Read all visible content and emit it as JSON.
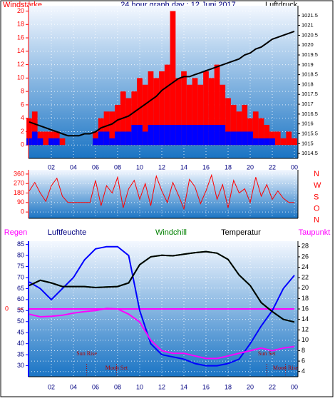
{
  "chart_data": [
    {
      "type": "line",
      "title": "24 hour graph day : 12 Juni 2017",
      "ylabel": "Windstärke",
      "y2label": "Luftdruck",
      "x": [
        0,
        0.5,
        1,
        1.5,
        2,
        2.5,
        3,
        3.5,
        4,
        4.5,
        5,
        5.5,
        6,
        6.5,
        7,
        7.5,
        8,
        8.5,
        9,
        9.5,
        10,
        10.5,
        11,
        11.5,
        12,
        12.5,
        13,
        13.5,
        14,
        14.5,
        15,
        15.5,
        16,
        16.5,
        17,
        17.5,
        18,
        18.5,
        19,
        19.5,
        20,
        20.5,
        21,
        21.5,
        22,
        22.5,
        23,
        23.5,
        24
      ],
      "xlim": [
        0,
        24
      ],
      "xticks": [
        {
          "value": 2,
          "label": "02"
        },
        {
          "value": 4,
          "label": "04"
        },
        {
          "value": 6,
          "label": "06"
        },
        {
          "value": 8,
          "label": "08"
        },
        10,
        12,
        14,
        16,
        18,
        20,
        22,
        {
          "value": 24,
          "label": "00"
        }
      ],
      "ylim": [
        -2,
        20.8
      ],
      "yticks": [
        0,
        2,
        4,
        6,
        8,
        10,
        12,
        14,
        16,
        18,
        20
      ],
      "y2lim": [
        1014.25,
        1022
      ],
      "y2ticks": [
        1014.5,
        1015,
        1015.5,
        1016,
        1016.5,
        1017,
        1017.5,
        1018,
        1018.5,
        1019,
        1019.5,
        1020,
        1020.5,
        1021,
        1021.5
      ],
      "grid": true,
      "series": [
        {
          "type": "bar",
          "color": "#ff0000",
          "values": [
            4,
            5,
            2,
            2,
            2,
            2,
            1,
            0,
            0,
            0,
            0,
            0,
            2,
            4,
            5,
            5,
            6,
            8,
            7,
            8,
            10,
            9,
            11,
            10,
            11,
            12,
            20,
            10,
            11,
            9,
            10,
            9,
            11,
            10,
            12,
            9,
            7,
            6,
            5,
            6,
            4,
            5,
            4,
            3,
            2,
            2,
            1,
            2,
            1
          ]
        },
        {
          "type": "bar",
          "color": "#0000ff",
          "values": [
            1,
            2,
            1,
            0,
            1,
            1,
            0,
            0,
            0,
            0,
            0,
            0,
            1,
            2,
            2,
            1,
            2,
            2,
            2,
            3,
            3,
            2,
            3,
            3,
            3,
            3,
            3,
            3,
            3,
            3,
            3,
            3,
            3,
            3,
            3,
            3,
            2,
            2,
            2,
            2,
            2,
            1,
            1,
            1,
            1,
            0,
            0,
            0,
            0
          ]
        },
        {
          "type": "line",
          "axis": "y2",
          "color": "#000000",
          "values": [
            1016.1,
            1016.0,
            1015.9,
            1015.8,
            1015.7,
            1015.6,
            1015.5,
            1015.4,
            1015.4,
            1015.4,
            1015.5,
            1015.5,
            1015.6,
            1015.8,
            1015.9,
            1016.0,
            1016.2,
            1016.3,
            1016.4,
            1016.6,
            1016.8,
            1017.0,
            1017.2,
            1017.4,
            1017.7,
            1017.9,
            1018.1,
            1018.3,
            1018.4,
            1018.4,
            1018.5,
            1018.6,
            1018.7,
            1018.8,
            1018.9,
            1019.0,
            1019.1,
            1019.2,
            1019.3,
            1019.5,
            1019.6,
            1019.8,
            1019.9,
            1020.1,
            1020.3,
            1020.4,
            1020.5,
            1020.6,
            1020.7
          ]
        }
      ]
    },
    {
      "type": "line",
      "x": [
        0,
        0.5,
        1,
        1.5,
        2,
        2.5,
        3,
        3.5,
        4,
        4.5,
        5,
        5.5,
        6,
        6.5,
        7,
        7.5,
        8,
        8.5,
        9,
        9.5,
        10,
        10.5,
        11,
        11.5,
        12,
        12.5,
        13,
        13.5,
        14,
        14.5,
        15,
        15.5,
        16,
        16.5,
        17,
        17.5,
        18,
        18.5,
        19,
        19.5,
        20,
        20.5,
        21,
        21.5,
        22,
        22.5,
        23,
        23.5,
        24
      ],
      "xlim": [
        0,
        24
      ],
      "ylim": [
        -60,
        400
      ],
      "yticks": [
        0,
        90,
        180,
        270,
        360
      ],
      "grid": true,
      "direction_labels": [
        "N",
        "W",
        "S",
        "O",
        "N"
      ],
      "series": [
        {
          "color": "#ff0000",
          "values": [
            200,
            280,
            180,
            100,
            250,
            320,
            150,
            90,
            90,
            90,
            90,
            90,
            300,
            60,
            250,
            180,
            330,
            40,
            220,
            300,
            120,
            270,
            60,
            340,
            200,
            90,
            280,
            160,
            30,
            310,
            240,
            80,
            200,
            350,
            120,
            260,
            40,
            300,
            180,
            220,
            90,
            330,
            150,
            260,
            120,
            200,
            130,
            90,
            90
          ]
        }
      ]
    },
    {
      "type": "line",
      "x": [
        0,
        1,
        2,
        3,
        4,
        5,
        6,
        7,
        8,
        9,
        10,
        11,
        12,
        13,
        14,
        15,
        16,
        17,
        18,
        19,
        20,
        21,
        22,
        23,
        24
      ],
      "xlim": [
        0,
        24
      ],
      "xticks": [
        {
          "value": 2,
          "label": "02"
        },
        {
          "value": 4,
          "label": "04"
        },
        {
          "value": 6,
          "label": "06"
        },
        {
          "value": 8,
          "label": "08"
        },
        10,
        12,
        14,
        16,
        18,
        20,
        22,
        {
          "value": 24,
          "label": "00"
        }
      ],
      "ylim": [
        25,
        86.5
      ],
      "yticks": [
        30,
        35,
        40,
        45,
        50,
        55,
        60,
        65,
        70,
        75,
        80,
        85
      ],
      "y2lim": [
        3,
        29
      ],
      "y2ticks": [
        4,
        6,
        8,
        10,
        12,
        14,
        16,
        18,
        20,
        22,
        24,
        26,
        28
      ],
      "y3lim": [
        -1,
        1
      ],
      "y3ticks": [
        0
      ],
      "grid": true,
      "series": [
        {
          "name": "Regen",
          "axis": "y3",
          "color": "#ff00ff",
          "values": [
            0,
            0,
            0,
            0,
            0,
            0,
            0,
            0,
            0,
            0,
            0,
            0,
            0,
            0,
            0,
            0,
            0,
            0,
            0,
            0,
            0,
            0,
            0,
            0,
            0
          ]
        },
        {
          "name": "Luftfeuchte",
          "axis": "y",
          "color": "#0000ff",
          "values": [
            68,
            65,
            60,
            65,
            70,
            78,
            83,
            84,
            84,
            80,
            55,
            40,
            35,
            34,
            33,
            31,
            30,
            30,
            31,
            33,
            40,
            48,
            55,
            65,
            71
          ]
        },
        {
          "name": "Windchill",
          "axis": "y2",
          "color": "#008000",
          "values": [
            20.5,
            21.5,
            21.0,
            20.3,
            20.3,
            20.3,
            20.1,
            20.2,
            20.3,
            21.0,
            24.5,
            26.0,
            26.3,
            26.2,
            26.5,
            26.8,
            27.0,
            26.7,
            25.5,
            22.5,
            20.5,
            17.2,
            15.5,
            14.0,
            13.5
          ]
        },
        {
          "name": "Temperatur",
          "axis": "y2",
          "color": "#000000",
          "values": [
            20.5,
            21.5,
            21.0,
            20.3,
            20.3,
            20.3,
            20.1,
            20.2,
            20.3,
            21.0,
            24.5,
            26.0,
            26.3,
            26.2,
            26.5,
            26.8,
            27.0,
            26.7,
            25.5,
            22.5,
            20.5,
            17.2,
            15.5,
            14.0,
            13.5
          ]
        },
        {
          "name": "Taupunkt",
          "axis": "y2",
          "color": "#ff00ff",
          "values": [
            15.0,
            14.5,
            14.6,
            14.8,
            15.2,
            15.5,
            15.7,
            16.1,
            16.0,
            15.0,
            13.5,
            10.0,
            8.0,
            7.5,
            7.5,
            7.0,
            6.5,
            6.5,
            7.0,
            7.5,
            8.0,
            8.5,
            8.0,
            8.5,
            8.8
          ]
        }
      ],
      "annotations": [
        {
          "text": "Sun Rise",
          "x": 5.2
        },
        {
          "text": "Moon Set",
          "x": 7.9
        },
        {
          "text": "Sun Set",
          "x": 21.5
        },
        {
          "text": "Moon Rise",
          "x": 23.2
        }
      ]
    }
  ]
}
